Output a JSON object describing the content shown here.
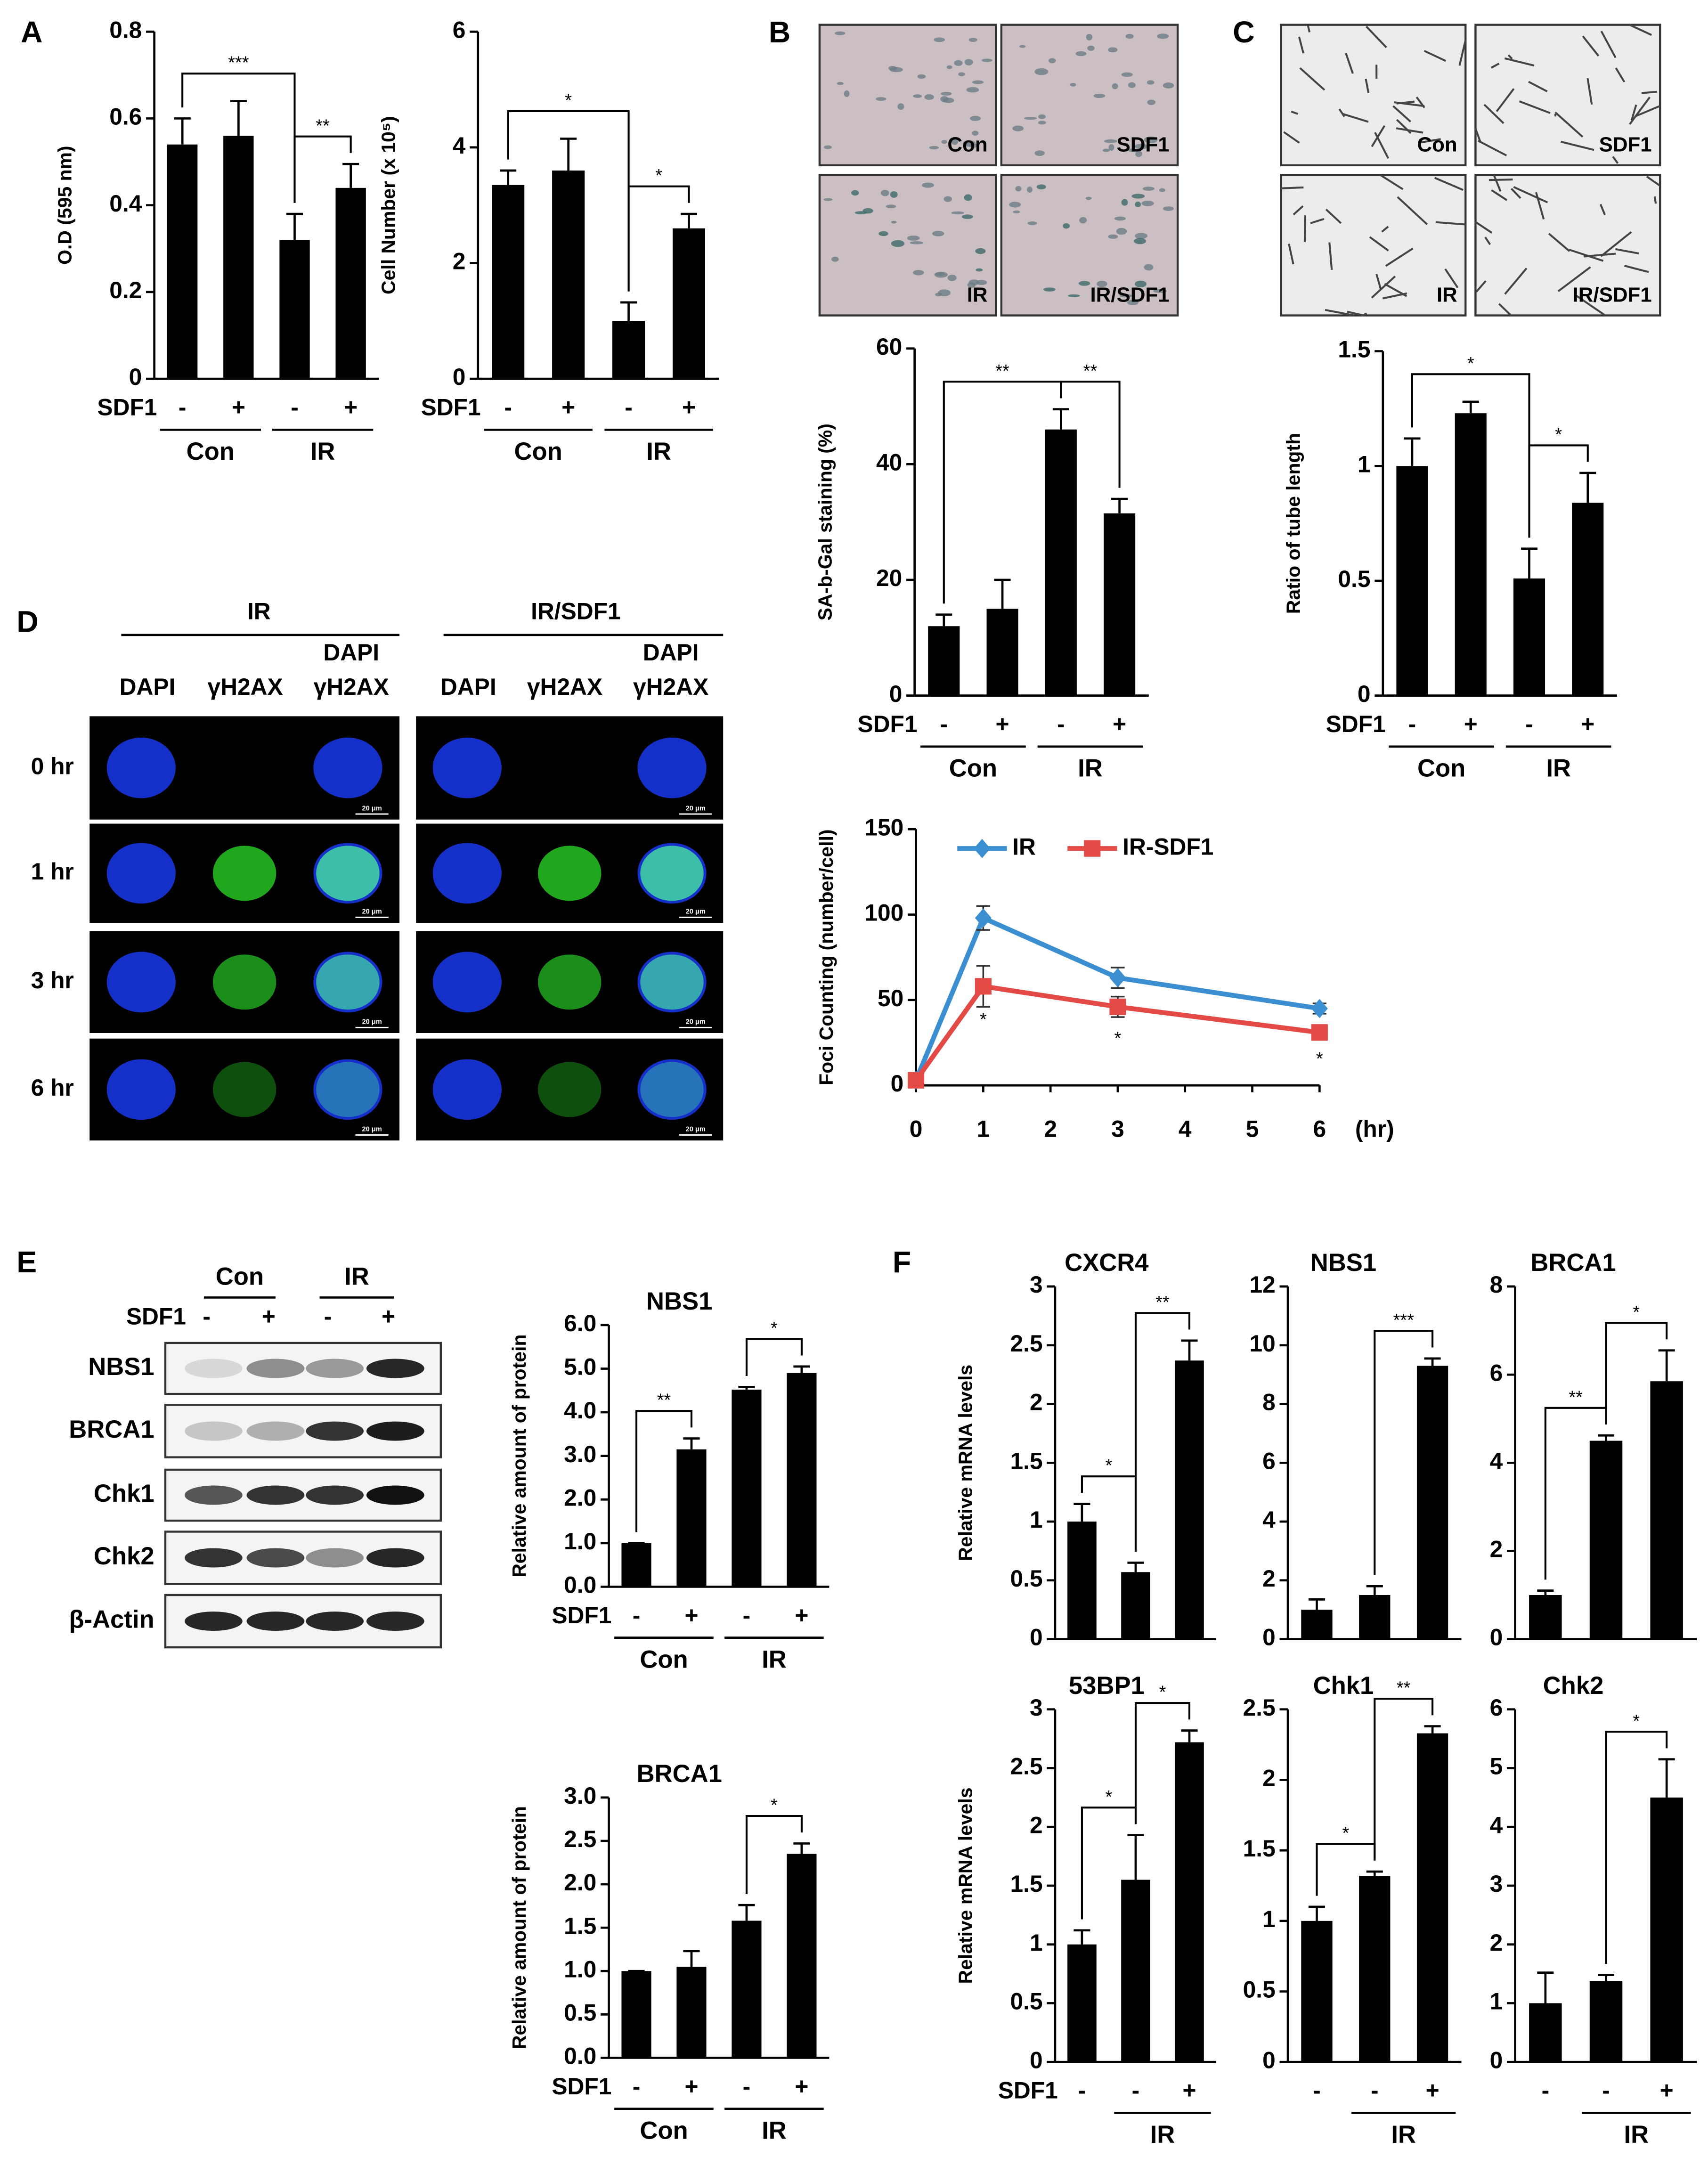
{
  "chart_data": [
    {
      "type": "bar",
      "ylabel": "O.D (595 nm)",
      "row_label": "SDF1",
      "categories": [
        "-",
        "+",
        "-",
        "+"
      ],
      "groups": [
        {
          "label": "Con",
          "bars": [
            0,
            1
          ]
        },
        {
          "label": "IR",
          "bars": [
            2,
            3
          ]
        }
      ],
      "values": [
        0.54,
        0.56,
        0.32,
        0.44
      ],
      "errors": [
        0.06,
        0.08,
        0.06,
        0.055
      ],
      "color": "#000000",
      "ylim": [
        0,
        0.8
      ],
      "yticks": [
        0,
        0.2,
        0.4,
        0.6,
        0.8
      ],
      "brackets": [
        {
          "label": "***",
          "bars": [
            0,
            2
          ]
        },
        {
          "label": "**",
          "bars": [
            2,
            3
          ]
        }
      ]
    },
    {
      "type": "bar",
      "ylabel": "Cell Number (x 10⁵)",
      "row_label": "SDF1",
      "categories": [
        "-",
        "+",
        "-",
        "+"
      ],
      "groups": [
        {
          "label": "Con",
          "bars": [
            0,
            1
          ]
        },
        {
          "label": "IR",
          "bars": [
            2,
            3
          ]
        }
      ],
      "values": [
        3.35,
        3.6,
        1.0,
        2.6
      ],
      "errors": [
        0.25,
        0.55,
        0.32,
        0.25
      ],
      "color": "#000000",
      "ylim": [
        0,
        6
      ],
      "yticks": [
        0,
        2,
        4,
        6
      ],
      "brackets": [
        {
          "label": "*",
          "bars": [
            0,
            2
          ]
        },
        {
          "label": "*",
          "bars": [
            2,
            3
          ]
        }
      ]
    },
    {
      "type": "bar",
      "ylabel": "SA-b-Gal staining (%)",
      "row_label": "SDF1",
      "categories": [
        "-",
        "+",
        "-",
        "+"
      ],
      "groups": [
        {
          "label": "Con",
          "bars": [
            0,
            1
          ]
        },
        {
          "label": "IR",
          "bars": [
            2,
            3
          ]
        }
      ],
      "values": [
        12,
        15,
        46,
        31.5
      ],
      "errors": [
        2,
        5,
        3.5,
        2.5
      ],
      "color": "#000000",
      "ylim": [
        0,
        60
      ],
      "yticks": [
        0,
        20,
        40,
        60
      ],
      "brackets": [
        {
          "label": "**",
          "bars": [
            0,
            2
          ]
        },
        {
          "label": "**",
          "bars": [
            2,
            3
          ]
        }
      ]
    },
    {
      "type": "bar",
      "ylabel": "Ratio of tube length",
      "row_label": "SDF1",
      "categories": [
        "-",
        "+",
        "-",
        "+"
      ],
      "groups": [
        {
          "label": "Con",
          "bars": [
            0,
            1
          ]
        },
        {
          "label": "IR",
          "bars": [
            2,
            3
          ]
        }
      ],
      "values": [
        1.0,
        1.23,
        0.51,
        0.84
      ],
      "errors": [
        0.12,
        0.05,
        0.13,
        0.13
      ],
      "color": "#000000",
      "ylim": [
        0,
        1.5
      ],
      "yticks": [
        0,
        0.5,
        1,
        1.5
      ],
      "brackets": [
        {
          "label": "*",
          "bars": [
            0,
            2
          ]
        },
        {
          "label": "*",
          "bars": [
            2,
            3
          ]
        }
      ]
    },
    {
      "type": "line",
      "ylabel": "Foci Counting (number/cell)",
      "x": [
        0,
        1,
        3,
        6
      ],
      "xlim": [
        0,
        6
      ],
      "xticks": [
        0,
        1,
        2,
        3,
        4,
        5,
        6
      ],
      "xunit": "(hr)",
      "ylim": [
        0,
        150
      ],
      "yticks": [
        0,
        50,
        100,
        150
      ],
      "series": [
        {
          "name": "IR",
          "color": "#3b8fd1",
          "marker": "diamond",
          "values": [
            3,
            98,
            63,
            45
          ],
          "errors": [
            0,
            7,
            6,
            3
          ]
        },
        {
          "name": "IR-SDF1",
          "color": "#e34a45",
          "marker": "square",
          "values": [
            3,
            58,
            46,
            31
          ],
          "errors": [
            0,
            12,
            6,
            4
          ]
        }
      ],
      "legend": "top",
      "annotations": [
        {
          "text": "*",
          "x": 1,
          "y": 38
        },
        {
          "text": "*",
          "x": 3,
          "y": 27
        },
        {
          "text": "*",
          "x": 6,
          "y": 15
        }
      ]
    },
    {
      "type": "bar",
      "title": "NBS1",
      "ylabel": "Relative amount of protein",
      "row_label": "SDF1",
      "categories": [
        "-",
        "+",
        "-",
        "+"
      ],
      "groups": [
        {
          "label": "Con",
          "bars": [
            0,
            1
          ]
        },
        {
          "label": "IR",
          "bars": [
            2,
            3
          ]
        }
      ],
      "values": [
        1.0,
        3.15,
        4.52,
        4.9
      ],
      "errors": [
        0,
        0.25,
        0.06,
        0.15
      ],
      "color": "#000000",
      "ylim": [
        0,
        6
      ],
      "yticks": [
        {
          "value": 0,
          "label": "0.0"
        },
        {
          "value": 1,
          "label": "1.0"
        },
        {
          "value": 2,
          "label": "2.0"
        },
        {
          "value": 3,
          "label": "3.0"
        },
        {
          "value": 4,
          "label": "4.0"
        },
        {
          "value": 5,
          "label": "5.0"
        },
        {
          "value": 6,
          "label": "6.0"
        }
      ],
      "brackets": [
        {
          "label": "**",
          "bars": [
            0,
            1
          ]
        },
        {
          "label": "*",
          "bars": [
            2,
            3
          ]
        }
      ]
    },
    {
      "type": "bar",
      "title": "BRCA1",
      "ylabel": "Relative amount of protein",
      "row_label": "SDF1",
      "categories": [
        "-",
        "+",
        "-",
        "+"
      ],
      "groups": [
        {
          "label": "Con",
          "bars": [
            0,
            1
          ]
        },
        {
          "label": "IR",
          "bars": [
            2,
            3
          ]
        }
      ],
      "values": [
        1.0,
        1.05,
        1.58,
        2.35
      ],
      "errors": [
        0,
        0.18,
        0.18,
        0.12
      ],
      "color": "#000000",
      "ylim": [
        0,
        3
      ],
      "yticks": [
        {
          "value": 0,
          "label": "0.0"
        },
        0.5,
        {
          "value": 1,
          "label": "1.0"
        },
        1.5,
        {
          "value": 2,
          "label": "2.0"
        },
        2.5,
        {
          "value": 3,
          "label": "3.0"
        }
      ],
      "brackets": [
        {
          "label": "*",
          "bars": [
            2,
            3
          ]
        }
      ]
    },
    {
      "type": "bar",
      "title": "CXCR4",
      "ylabel": "Relative mRNA  levels",
      "categories": [
        null,
        null,
        null
      ],
      "values": [
        1.0,
        0.57,
        2.37
      ],
      "errors": [
        0.15,
        0.08,
        0.17
      ],
      "color": "#000000",
      "ylim": [
        0,
        3
      ],
      "yticks": [
        0,
        0.5,
        1,
        1.5,
        2,
        2.5,
        3
      ],
      "brackets": [
        {
          "label": "*",
          "bars": [
            0,
            1
          ]
        },
        {
          "label": "**",
          "bars": [
            1,
            2
          ]
        }
      ]
    },
    {
      "type": "bar",
      "title": "NBS1",
      "categories": [
        null,
        null,
        null
      ],
      "values": [
        1.0,
        1.5,
        9.3
      ],
      "errors": [
        0.35,
        0.3,
        0.25
      ],
      "color": "#000000",
      "ylim": [
        0,
        12
      ],
      "yticks": [
        0,
        2,
        4,
        6,
        8,
        10,
        12
      ],
      "brackets": [
        {
          "label": "***",
          "bars": [
            1,
            2
          ]
        }
      ]
    },
    {
      "type": "bar",
      "title": "BRCA1",
      "categories": [
        null,
        null,
        null
      ],
      "values": [
        1.0,
        4.5,
        5.85
      ],
      "errors": [
        0.1,
        0.12,
        0.7
      ],
      "color": "#000000",
      "ylim": [
        0,
        8
      ],
      "yticks": [
        0,
        2,
        4,
        6,
        8
      ],
      "brackets": [
        {
          "label": "**",
          "bars": [
            0,
            1
          ]
        },
        {
          "label": "*",
          "bars": [
            1,
            2
          ]
        }
      ]
    },
    {
      "type": "bar",
      "title": "53BP1",
      "ylabel": "Relative mRNA  levels",
      "row_label": "SDF1",
      "categories": [
        "-",
        "-",
        "+"
      ],
      "groups": [
        {
          "label": "IR",
          "bars": [
            1,
            2
          ]
        }
      ],
      "values": [
        1.0,
        1.55,
        2.72
      ],
      "errors": [
        0.12,
        0.38,
        0.1
      ],
      "color": "#000000",
      "ylim": [
        0,
        3
      ],
      "yticks": [
        0,
        0.5,
        1,
        1.5,
        2,
        2.5,
        3
      ],
      "brackets": [
        {
          "label": "*",
          "bars": [
            0,
            1
          ]
        },
        {
          "label": "*",
          "bars": [
            1,
            2
          ]
        }
      ]
    },
    {
      "type": "bar",
      "title": "Chk1",
      "categories": [
        "-",
        "-",
        "+"
      ],
      "groups": [
        {
          "label": "IR",
          "bars": [
            1,
            2
          ]
        }
      ],
      "values": [
        1.0,
        1.32,
        2.33
      ],
      "errors": [
        0.1,
        0.03,
        0.05
      ],
      "color": "#000000",
      "ylim": [
        0,
        2.5
      ],
      "yticks": [
        0,
        0.5,
        1,
        1.5,
        2,
        2.5
      ],
      "brackets": [
        {
          "label": "*",
          "bars": [
            0,
            1
          ]
        },
        {
          "label": "**",
          "bars": [
            1,
            2
          ]
        }
      ]
    },
    {
      "type": "bar",
      "title": "Chk2",
      "categories": [
        "-",
        "-",
        "+"
      ],
      "groups": [
        {
          "label": "IR",
          "bars": [
            1,
            2
          ]
        }
      ],
      "values": [
        1.0,
        1.38,
        4.5
      ],
      "errors": [
        0.52,
        0.1,
        0.65
      ],
      "color": "#000000",
      "ylim": [
        0,
        6
      ],
      "yticks": [
        0,
        1,
        2,
        3,
        4,
        5,
        6
      ],
      "brackets": [
        {
          "label": "*",
          "bars": [
            1,
            2
          ]
        }
      ]
    }
  ],
  "panel_letters": [
    "A",
    "B",
    "C",
    "D",
    "E",
    "F"
  ],
  "senescence_images": {
    "labels": [
      "Con",
      "SDF1",
      "IR",
      "IR/SDF1"
    ]
  },
  "tube_images": {
    "labels": [
      "Con",
      "SDF1",
      "IR",
      "IR/SDF1"
    ]
  },
  "foci_images": {
    "groups": [
      "IR",
      "IR/SDF1"
    ],
    "columns": [
      "DAPI",
      "γH2AX",
      [
        "DAPI",
        "γH2AX"
      ]
    ],
    "rows": [
      "0 hr",
      "1 hr",
      "3 hr",
      "6 hr"
    ],
    "scale_bar": "20 μm"
  },
  "western_blot": {
    "groups": [
      "Con",
      "IR"
    ],
    "row_label": "SDF1",
    "lanes": [
      "-",
      "+",
      "-",
      "+"
    ],
    "proteins": [
      "NBS1",
      "BRCA1",
      "Chk1",
      "Chk2",
      "β-Actin"
    ]
  }
}
